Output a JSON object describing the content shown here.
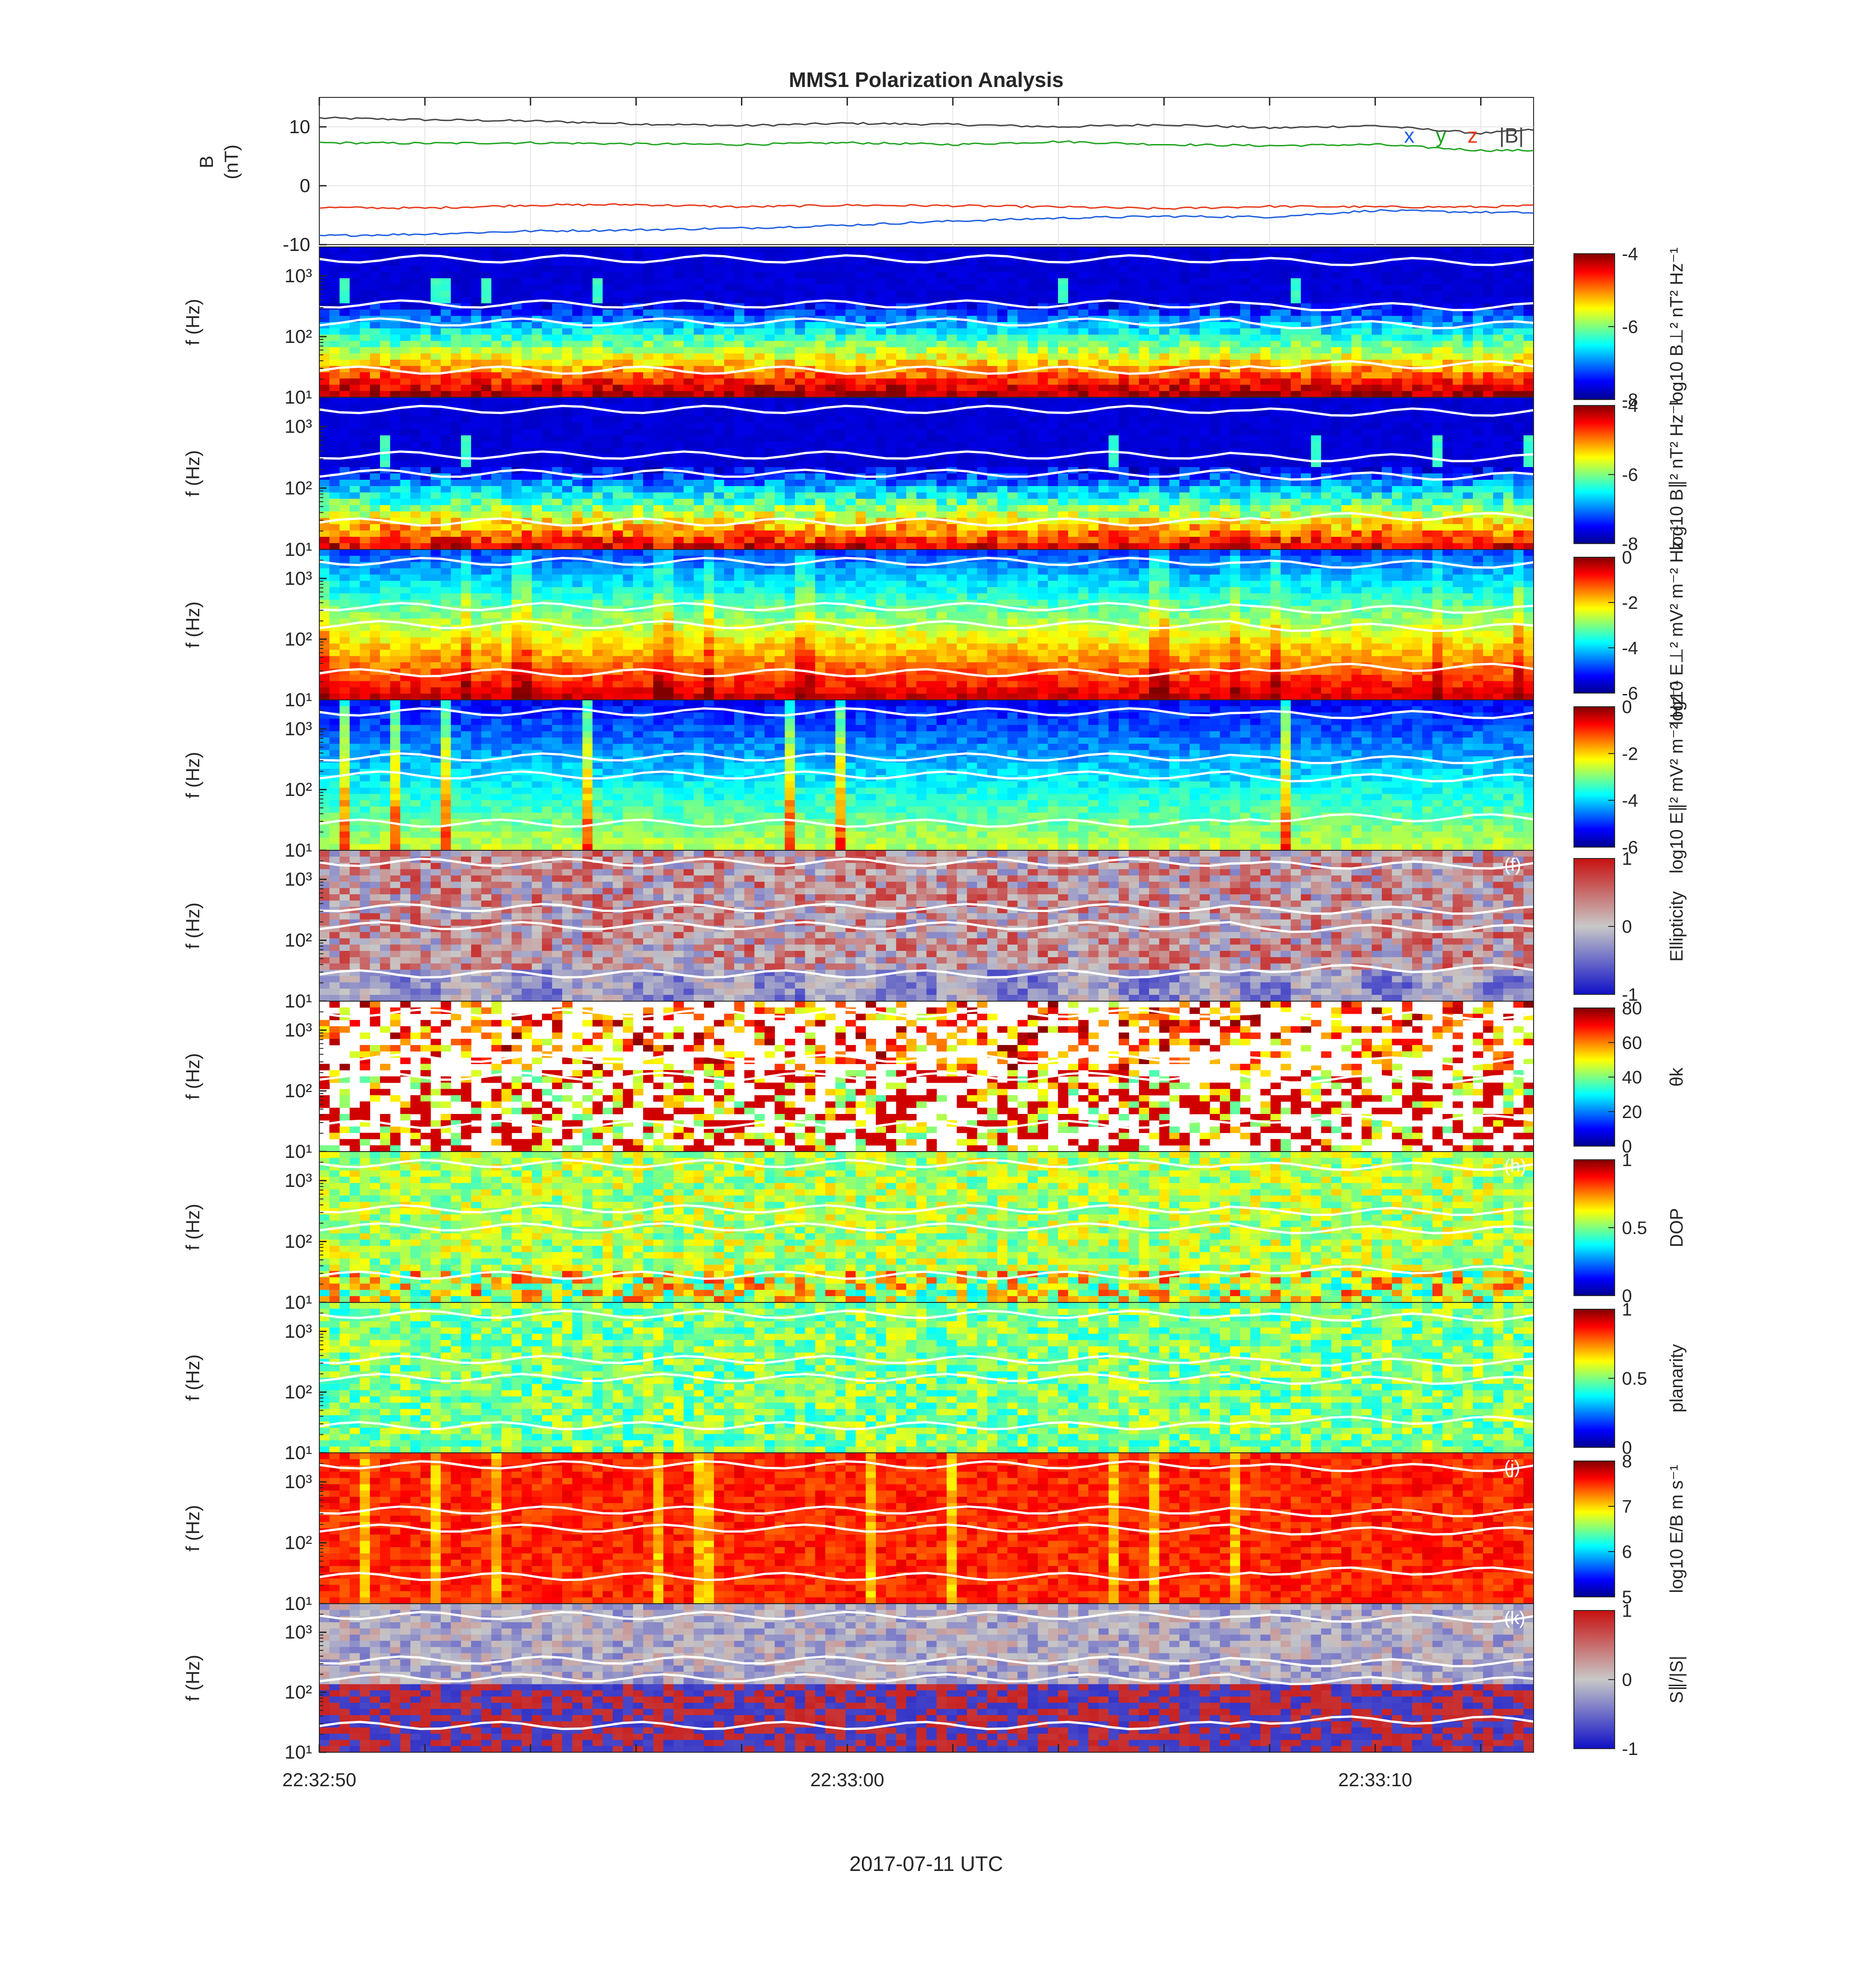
{
  "chart_data": {
    "type": "spectrogram",
    "title": "MMS1 Polarization Analysis",
    "xlabel": "2017-07-11 UTC",
    "x_ticks": [
      "22:32:50",
      "22:33:00",
      "22:33:10"
    ],
    "panels": [
      {
        "id": "a",
        "type": "line",
        "ylabel": [
          "B",
          "(nT)"
        ],
        "yticks": [
          "10",
          "0",
          "-10"
        ],
        "ylim": [
          -10,
          15
        ],
        "legend": [
          {
            "label": "x",
            "color": "#1f5fe0"
          },
          {
            "label": "y",
            "color": "#1ea51e"
          },
          {
            "label": "z",
            "color": "#e8391a"
          },
          {
            "label": "|B|",
            "color": "#444444"
          }
        ],
        "series": [
          {
            "name": "|B|",
            "color": "#444444",
            "x": [
              0,
              2,
              4,
              6,
              8,
              10,
              12,
              14,
              16,
              18,
              20,
              22,
              23
            ],
            "values": [
              11.5,
              11.2,
              11.0,
              10.5,
              10.2,
              10.6,
              10.4,
              10.0,
              10.4,
              9.8,
              10.2,
              8.9,
              9.5
            ]
          },
          {
            "name": "y",
            "color": "#1ea51e",
            "x": [
              0,
              2,
              4,
              6,
              8,
              10,
              12,
              14,
              16,
              18,
              20,
              22,
              23
            ],
            "values": [
              7.3,
              7.2,
              7.3,
              7.1,
              7.0,
              7.3,
              7.0,
              7.5,
              7.0,
              6.8,
              7.0,
              6.0,
              6.0
            ]
          },
          {
            "name": "z",
            "color": "#e8391a",
            "x": [
              0,
              2,
              4,
              6,
              8,
              10,
              12,
              14,
              16,
              18,
              20,
              22,
              23
            ],
            "values": [
              -3.7,
              -3.8,
              -3.3,
              -3.2,
              -3.6,
              -3.3,
              -3.4,
              -3.6,
              -3.9,
              -3.5,
              -3.6,
              -3.6,
              -3.4
            ]
          },
          {
            "name": "x",
            "color": "#1f5fe0",
            "x": [
              0,
              2,
              4,
              6,
              8,
              10,
              12,
              14,
              16,
              18,
              20,
              22,
              23
            ],
            "values": [
              -8.5,
              -8.2,
              -7.7,
              -7.5,
              -7.2,
              -6.7,
              -6.0,
              -5.5,
              -5.2,
              -5.3,
              -4.2,
              -4.5,
              -4.6
            ]
          }
        ]
      },
      {
        "id": "b",
        "type": "heatmap",
        "ylabel": "f (Hz)",
        "cbar_label": "log10 B⊥² nT² Hz⁻¹",
        "cbar_ticks": [
          "-4",
          "-6",
          "-8"
        ],
        "crange": [
          -8,
          -4
        ],
        "colormap": "jet",
        "pattern": "bperp"
      },
      {
        "id": "c",
        "type": "heatmap",
        "ylabel": "f (Hz)",
        "cbar_label": "log10 B∥² nT² Hz⁻¹",
        "cbar_ticks": [
          "-4",
          "-6",
          "-8"
        ],
        "crange": [
          -8,
          -4
        ],
        "colormap": "jet",
        "pattern": "bpar"
      },
      {
        "id": "d",
        "type": "heatmap",
        "ylabel": "f (Hz)",
        "cbar_label": "log10 E⊥² mV² m⁻² Hz⁻¹",
        "cbar_ticks": [
          "0",
          "-2",
          "-4",
          "-6"
        ],
        "crange": [
          -6,
          1
        ],
        "colormap": "jet",
        "pattern": "eperp"
      },
      {
        "id": "e",
        "type": "heatmap",
        "ylabel": "f (Hz)",
        "cbar_label": "log10 E∥² mV² m⁻² Hz⁻¹",
        "cbar_ticks": [
          "0",
          "-2",
          "-4",
          "-6"
        ],
        "crange": [
          -6,
          1
        ],
        "colormap": "jet",
        "pattern": "epar"
      },
      {
        "id": "f",
        "type": "heatmap",
        "ylabel": "f (Hz)",
        "panel_label": "(f)",
        "cbar_label": "Ellipticity",
        "cbar_ticks": [
          "1",
          "0",
          "-1"
        ],
        "crange": [
          -1,
          1
        ],
        "colormap": "bwr",
        "pattern": "ellip"
      },
      {
        "id": "g",
        "type": "heatmap",
        "ylabel": "f (Hz)",
        "cbar_label": "θk",
        "cbar_ticks": [
          "80",
          "60",
          "40",
          "20",
          "0"
        ],
        "crange": [
          0,
          90
        ],
        "colormap": "jet",
        "pattern": "theta"
      },
      {
        "id": "h",
        "type": "heatmap",
        "ylabel": "f (Hz)",
        "panel_label": "(h)",
        "cbar_label": "DOP",
        "cbar_ticks": [
          "1",
          "0.5",
          "0"
        ],
        "crange": [
          0,
          1
        ],
        "colormap": "jet",
        "pattern": "dop"
      },
      {
        "id": "i",
        "type": "heatmap",
        "ylabel": "f (Hz)",
        "cbar_label": "planarity",
        "cbar_ticks": [
          "1",
          "0.5",
          "0"
        ],
        "crange": [
          0,
          1
        ],
        "colormap": "jet",
        "pattern": "plan"
      },
      {
        "id": "j",
        "type": "heatmap",
        "ylabel": "f (Hz)",
        "panel_label": "(j)",
        "cbar_label": "log10 E/B m s⁻¹",
        "cbar_ticks": [
          "8",
          "7",
          "6",
          "5"
        ],
        "crange": [
          5,
          8
        ],
        "colormap": "jet",
        "pattern": "eb"
      },
      {
        "id": "k",
        "type": "heatmap",
        "ylabel": "f (Hz)",
        "panel_label": "(k)",
        "cbar_label": "S∥/|S|",
        "cbar_ticks": [
          "1",
          "0",
          "-1"
        ],
        "crange": [
          -1,
          1
        ],
        "colormap": "bwr",
        "pattern": "poynt"
      }
    ],
    "f_ticks": [
      "10³",
      "10²",
      "10¹"
    ],
    "overlay_lines": "white characteristic-frequency curves"
  }
}
